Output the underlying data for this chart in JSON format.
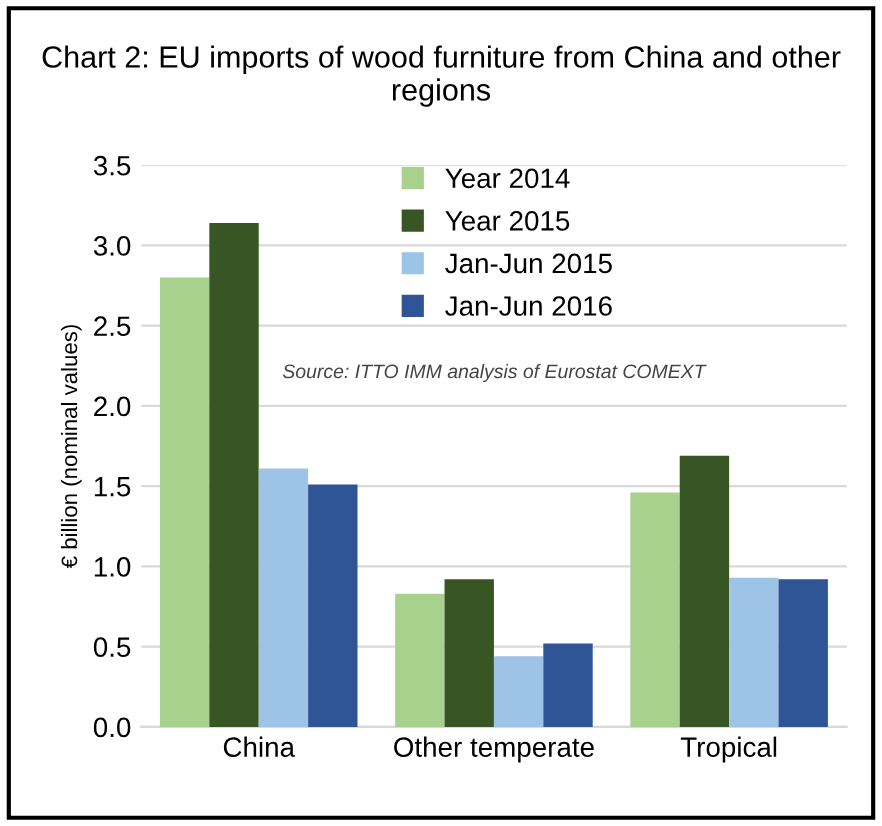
{
  "chart_data": {
    "type": "bar",
    "title": "Chart 2: EU imports of wood furniture from China and other regions",
    "ylabel": "€ billion (nominal values)",
    "categories": [
      "China",
      "Other temperate",
      "Tropical"
    ],
    "series": [
      {
        "name": "Year 2014",
        "color": "#a9d18e",
        "values": [
          2.8,
          0.83,
          1.46
        ]
      },
      {
        "name": "Year 2015",
        "color": "#375623",
        "values": [
          3.14,
          0.92,
          1.69
        ]
      },
      {
        "name": "Jan-Jun 2015",
        "color": "#9dc3e6",
        "values": [
          1.61,
          0.44,
          0.93
        ]
      },
      {
        "name": "Jan-Jun 2016",
        "color": "#2f5597",
        "values": [
          1.51,
          0.52,
          0.92
        ]
      }
    ],
    "ylim": [
      0,
      3.5
    ],
    "yticks": [
      {
        "value": 0,
        "label": "0.0"
      },
      {
        "value": 0.5,
        "label": "0.5"
      },
      {
        "value": 1,
        "label": "1.0"
      },
      {
        "value": 1.5,
        "label": "1.5"
      },
      {
        "value": 2,
        "label": "2.0"
      },
      {
        "value": 2.5,
        "label": "2.5"
      },
      {
        "value": 3,
        "label": "3.0"
      },
      {
        "value": 3.5,
        "label": "3.5"
      }
    ],
    "grid": "y",
    "legend": "top",
    "annotations": [
      "Source: ITTO IMM analysis of Eurostat COMEXT"
    ]
  }
}
